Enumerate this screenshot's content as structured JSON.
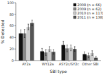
{
  "chart_data": {
    "type": "bar",
    "categories": [
      "AY2a",
      "WY12a",
      "ASY2c/SY2c",
      "Other SBI"
    ],
    "series": [
      {
        "name": "2008 (n = 66)",
        "color": "#111111",
        "values": [
          47,
          16,
          27,
          11
        ],
        "errors": [
          6,
          5,
          6,
          4
        ]
      },
      {
        "name": "2009 (n = 62)",
        "color": "#888888",
        "values": [
          47,
          14,
          21,
          9
        ],
        "errors": [
          7,
          5,
          6,
          4
        ]
      },
      {
        "name": "2010 (n = 117)",
        "color": "#cccccc",
        "values": [
          58,
          20,
          22,
          13
        ],
        "errors": [
          5,
          4,
          5,
          4
        ]
      },
      {
        "name": "2011 (n = 138)",
        "color": "#555555",
        "values": [
          65,
          15,
          20,
          5
        ],
        "errors": [
          5,
          4,
          4,
          2
        ]
      }
    ],
    "xlabel": "SBI type",
    "ylabel": "% Detected",
    "ylim": [
      0,
      100
    ],
    "yticks": [
      0,
      20,
      40,
      60,
      80,
      100
    ],
    "grid": false,
    "legend": "upper right"
  }
}
